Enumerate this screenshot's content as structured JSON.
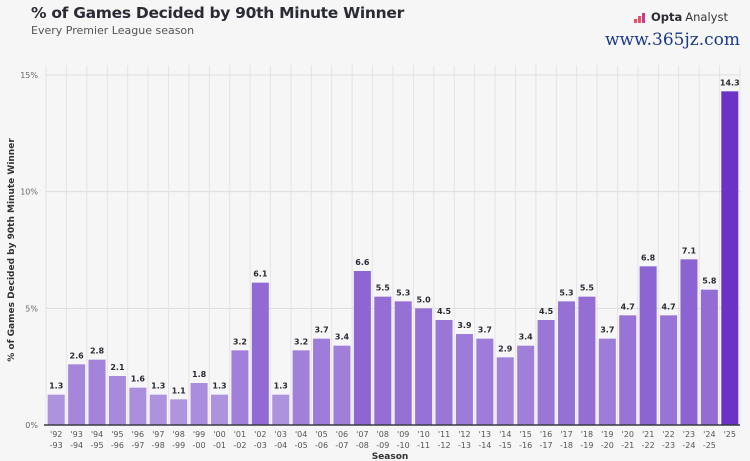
{
  "header": {
    "title": "% of Games Decided by 90th Minute Winner",
    "subtitle": "Every Premier League season",
    "brand_bold": "Opta",
    "brand_light": "Analyst"
  },
  "watermark": "www.365jz.com",
  "chart_data": {
    "type": "bar",
    "title": "% of Games Decided by 90th Minute Winner",
    "subtitle": "Every Premier League season",
    "xlabel": "Season",
    "ylabel": "% of Games Decided by 90th Minute Winner",
    "ylim": [
      0,
      15
    ],
    "yticks": [
      {
        "v": 0,
        "label": "0%"
      },
      {
        "v": 5,
        "label": "5%"
      },
      {
        "v": 10,
        "label": "10%"
      },
      {
        "v": 15,
        "label": "15%"
      }
    ],
    "grid": true,
    "categories": [
      [
        "'92",
        "-93"
      ],
      [
        "'93",
        "-94"
      ],
      [
        "'94",
        "-95"
      ],
      [
        "'95",
        "-96"
      ],
      [
        "'96",
        "-97"
      ],
      [
        "'97",
        "-98"
      ],
      [
        "'98",
        "-99"
      ],
      [
        "'99",
        "-00"
      ],
      [
        "'00",
        "-01"
      ],
      [
        "'01",
        "-02"
      ],
      [
        "'02",
        "-03"
      ],
      [
        "'03",
        "-04"
      ],
      [
        "'04",
        "-05"
      ],
      [
        "'05",
        "-06"
      ],
      [
        "'06",
        "-07"
      ],
      [
        "'07",
        "-08"
      ],
      [
        "'08",
        "-09"
      ],
      [
        "'09",
        "-10"
      ],
      [
        "'10",
        "-11"
      ],
      [
        "'11",
        "-12"
      ],
      [
        "'12",
        "-13"
      ],
      [
        "'13",
        "-14"
      ],
      [
        "'14",
        "-15"
      ],
      [
        "'15",
        "-16"
      ],
      [
        "'16",
        "-17"
      ],
      [
        "'17",
        "-18"
      ],
      [
        "'18",
        "-19"
      ],
      [
        "'19",
        "-20"
      ],
      [
        "'20",
        "-21"
      ],
      [
        "'21",
        "-22"
      ],
      [
        "'22",
        "-23"
      ],
      [
        "'23",
        "-24"
      ],
      [
        "'24",
        "-25"
      ],
      [
        "'25",
        ""
      ]
    ],
    "values": [
      1.3,
      2.6,
      2.8,
      2.1,
      1.6,
      1.3,
      1.1,
      1.8,
      1.3,
      3.2,
      6.1,
      1.3,
      3.2,
      3.7,
      3.4,
      6.6,
      5.5,
      5.3,
      5.0,
      4.5,
      3.9,
      3.7,
      2.9,
      3.4,
      4.5,
      5.3,
      5.5,
      3.7,
      4.7,
      6.8,
      4.7,
      7.1,
      5.8,
      14.3
    ],
    "colors": {
      "low": "#b9a2e2",
      "high": "#6a33c6"
    }
  }
}
